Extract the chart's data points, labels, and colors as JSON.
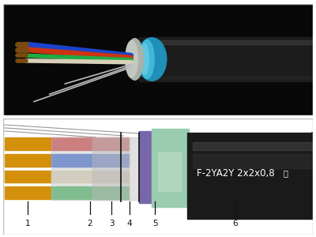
{
  "top_bg": "#080808",
  "bottom_bg": "#ffffff",
  "border_color": "#bbbbbb",
  "label_text": "F-2YA2Y 2x2x0,8",
  "label_color": "#ffffff",
  "label_fontsize": 8.5,
  "numbers": [
    "1",
    "2",
    "3",
    "4",
    "5",
    "6"
  ],
  "number_color": "#111111",
  "number_fontsize": 7.5,
  "conductor_color": "#d4900a",
  "insulation_colors": [
    "#cc2222",
    "#2255cc",
    "#ddd0b0",
    "#22aa44"
  ],
  "foil_color": "#cccccc",
  "inner_sheath_color1": "#7766aa",
  "inner_sheath_color2": "#99ccb0",
  "outer_jacket_color": "#1a1a1a",
  "wire_colors_top": [
    "#1a44cc",
    "#cc3311",
    "#22aa44",
    "#ddddcc",
    "#cccccc"
  ],
  "drain_wire_color": "#aaaaaa"
}
